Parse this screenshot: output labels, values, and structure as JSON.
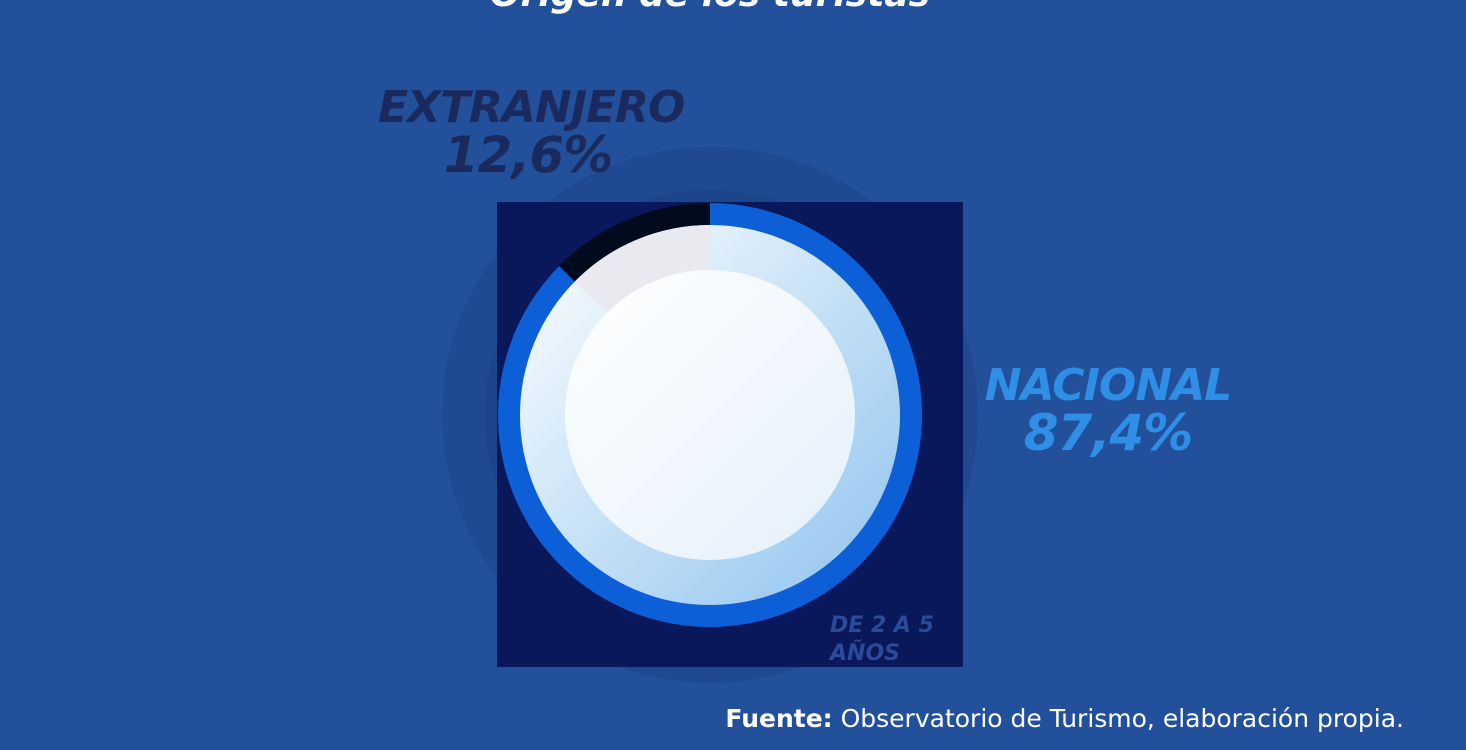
{
  "chart_data": {
    "type": "pie",
    "title": "Origen de los turistas",
    "categories": [
      "EXTRANJERO",
      "NACIONAL"
    ],
    "values": [
      12.6,
      87.4
    ],
    "value_labels": [
      "12,6%",
      "87,4%"
    ],
    "colors": [
      "#020a1e",
      "#0d5fd8"
    ],
    "label_colors": [
      "#1b2a5e",
      "#2f8fe6"
    ],
    "annotation": "DE 2 A 5 AÑOS",
    "source": {
      "label": "Fuente:",
      "text": "Observatorio de Turismo, elaboración propia."
    }
  }
}
